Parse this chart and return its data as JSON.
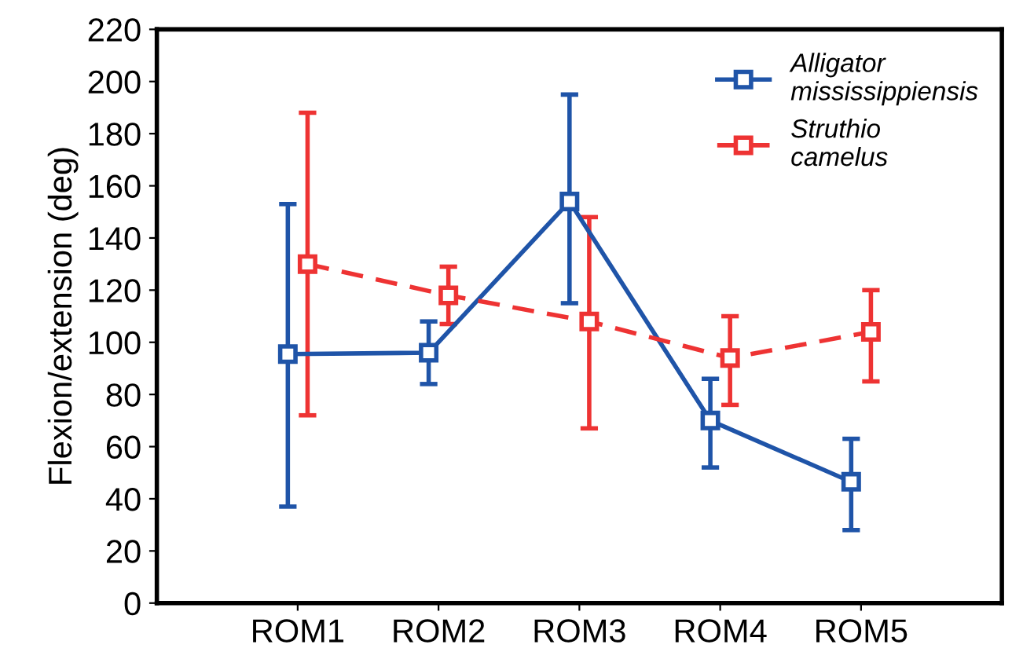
{
  "chart_data": {
    "type": "line",
    "ylabel": "Flexion/extension (deg)",
    "categories": [
      "ROM1",
      "ROM2",
      "ROM3",
      "ROM4",
      "ROM5"
    ],
    "series": [
      {
        "name": "Alligator mississippiensis",
        "color": "#1f54a8",
        "line_style": "solid",
        "values": [
          95.5,
          96,
          154,
          70,
          46.5
        ],
        "errors": [
          [
            37,
            153
          ],
          [
            84,
            108
          ],
          [
            115,
            195
          ],
          [
            52,
            86
          ],
          [
            28,
            63
          ]
        ]
      },
      {
        "name": "Struthio camelus",
        "color": "#ee3333",
        "line_style": "dashed",
        "values": [
          130,
          118,
          108,
          94,
          104
        ],
        "errors": [
          [
            72,
            188
          ],
          [
            107,
            129
          ],
          [
            67,
            148
          ],
          [
            76,
            110
          ],
          [
            85,
            120
          ]
        ]
      }
    ],
    "ylim": [
      0,
      220
    ],
    "yticks": [
      0,
      20,
      40,
      60,
      80,
      100,
      120,
      140,
      160,
      180,
      200,
      220
    ],
    "marker": "square",
    "grid": false,
    "legend": "top right"
  }
}
